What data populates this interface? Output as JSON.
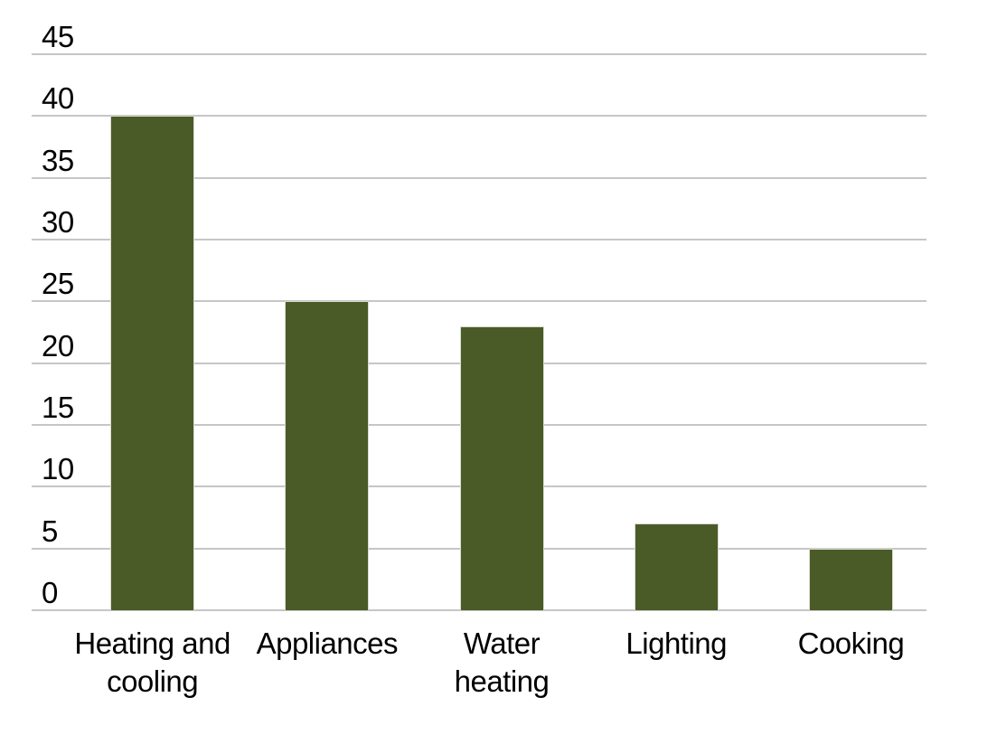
{
  "chart_data": {
    "type": "bar",
    "title": "",
    "xlabel": "",
    "ylabel": "",
    "categories": [
      "Heating and cooling",
      "Appliances",
      "Water heating",
      "Lighting",
      "Cooking"
    ],
    "values": [
      40,
      25,
      23,
      7,
      5
    ],
    "x_tick_labels": [
      "Heating and\ncooling",
      "Appliances",
      "Water\nheating",
      "Lighting",
      "Cooking"
    ],
    "y_ticks": [
      45,
      40,
      35,
      30,
      25,
      20,
      15,
      10,
      5,
      0
    ],
    "ylim": [
      0,
      45
    ],
    "grid": "horizontal",
    "legend": null,
    "colors": {
      "bar_fill": "#4A5B28",
      "bar_border": "#d9dcd0",
      "gridline": "#c6c6c6",
      "text": "#000000",
      "background": "#ffffff"
    }
  }
}
